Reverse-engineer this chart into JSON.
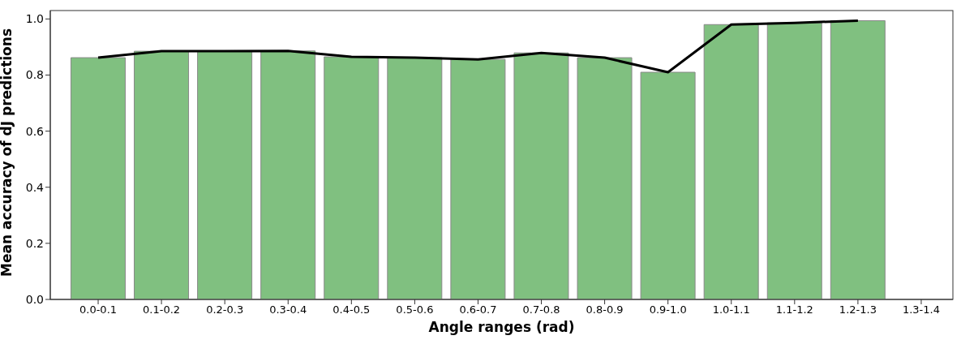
{
  "chart_data": {
    "type": "bar",
    "xlabel": "Angle ranges (rad)",
    "ylabel": "Mean accuracy of dJ predictions",
    "categories": [
      "0.0-0.1",
      "0.1-0.2",
      "0.2-0.3",
      "0.3-0.4",
      "0.4-0.5",
      "0.5-0.6",
      "0.6-0.7",
      "0.7-0.8",
      "0.8-0.9",
      "0.9-1.0",
      "1.0-1.1",
      "1.1-1.2",
      "1.2-1.3",
      "1.3-1.4"
    ],
    "series": [
      {
        "color": "#80c080",
        "values": [
          0.862,
          0.885,
          0.885,
          0.886,
          0.865,
          0.862,
          0.856,
          0.879,
          0.862,
          0.81,
          0.98,
          0.986,
          0.994,
          null
        ]
      },
      {
        "type": "line",
        "color": "#000000",
        "values": [
          0.862,
          0.885,
          0.885,
          0.886,
          0.865,
          0.862,
          0.856,
          0.879,
          0.862,
          0.81,
          0.98,
          0.986,
          0.994,
          null
        ]
      }
    ],
    "ylim": [
      0,
      1.03
    ],
    "yticks": [
      {
        "value": 0,
        "label": "0.0"
      },
      {
        "value": 0.2,
        "label": "0.2"
      },
      {
        "value": 0.4,
        "label": "0.4"
      },
      {
        "value": 0.6,
        "label": "0.6"
      },
      {
        "value": 0.8,
        "label": "0.8"
      },
      {
        "value": 1,
        "label": "1.0"
      }
    ],
    "grid": false,
    "legend": false,
    "marker": "none",
    "line_style": "solid"
  }
}
